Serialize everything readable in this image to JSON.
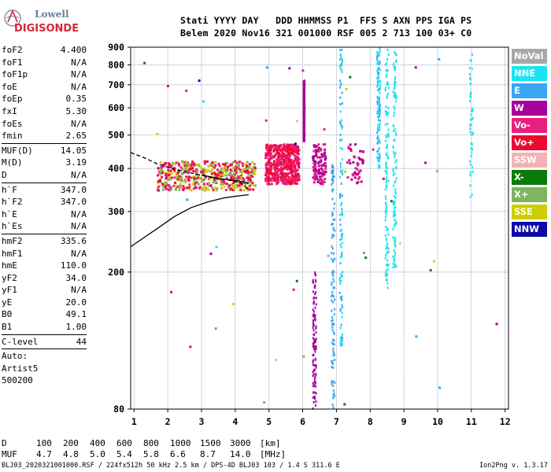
{
  "logo": {
    "top": "Lowell",
    "bottom": "DIGISONDE"
  },
  "header": {
    "line1": "Stati YYYY DAY   DDD HHMMSS P1  FFS S AXN PPS IGA PS",
    "line2": "Belem 2020 Nov16 321 001000 RSF 005 2 713 100 03+ C0"
  },
  "params": [
    {
      "name": "foF2",
      "value": "4.400"
    },
    {
      "name": "foF1",
      "value": "N/A"
    },
    {
      "name": "foF1p",
      "value": "N/A"
    },
    {
      "name": "foE",
      "value": "N/A"
    },
    {
      "name": "foEp",
      "value": "0.35"
    },
    {
      "name": "fxI",
      "value": "5.30"
    },
    {
      "name": "foEs",
      "value": "N/A"
    },
    {
      "name": "fmin",
      "value": "2.65"
    },
    {
      "sep": true
    },
    {
      "name": "MUF(D)",
      "value": "14.05"
    },
    {
      "name": "M(D)",
      "value": "3.19"
    },
    {
      "name": "D",
      "value": "N/A"
    },
    {
      "sep": true
    },
    {
      "name": "h`F",
      "value": "347.0"
    },
    {
      "name": "h`F2",
      "value": "347.0"
    },
    {
      "name": "h`E",
      "value": "N/A"
    },
    {
      "name": "h`Es",
      "value": "N/A"
    },
    {
      "sep": true
    },
    {
      "name": "hmF2",
      "value": "335.6"
    },
    {
      "name": "hmF1",
      "value": "N/A"
    },
    {
      "name": "hmE",
      "value": "110.0"
    },
    {
      "name": "yF2",
      "value": "34.0"
    },
    {
      "name": "yF1",
      "value": "N/A"
    },
    {
      "name": "yE",
      "value": "20.0"
    },
    {
      "name": "B0",
      "value": "49.1"
    },
    {
      "name": "B1",
      "value": "1.00"
    },
    {
      "sep": true
    },
    {
      "name": "C-level",
      "value": "44"
    },
    {
      "sep": true
    },
    {
      "name": "Auto:",
      "value": ""
    },
    {
      "name": "Artist5",
      "value": ""
    },
    {
      "name": "500200",
      "value": ""
    }
  ],
  "legend": [
    {
      "label": "NoVal",
      "color": "#a8a8a8"
    },
    {
      "label": "NNE",
      "color": "#1ae4f2"
    },
    {
      "label": "E",
      "color": "#3aa6f4"
    },
    {
      "label": "W",
      "color": "#a8009c"
    },
    {
      "label": "Vo-",
      "color": "#ea1e7e"
    },
    {
      "label": "Vo+",
      "color": "#ee0a2e"
    },
    {
      "label": "SSW",
      "color": "#f4b2b2"
    },
    {
      "label": "X-",
      "color": "#0a7a0a"
    },
    {
      "label": "X+",
      "color": "#80b45e"
    },
    {
      "label": "SSE",
      "color": "#cece08"
    },
    {
      "label": "NNW",
      "color": "#0a0aa6"
    }
  ],
  "muf_table": {
    "d_label": "D",
    "muf_label": "MUF",
    "distances": [
      "100",
      "200",
      "400",
      "600",
      "800",
      "1000",
      "1500",
      "3000"
    ],
    "distance_unit": "[km]",
    "mufs": [
      "4.7",
      "4.8",
      "5.0",
      "5.4",
      "5.8",
      "6.6",
      "8.7",
      "14.0"
    ],
    "muf_unit": "[MHz]"
  },
  "footer": {
    "left": "BLJ03_2020321001000.RSF / 224fx512h 50 kHz 2.5 km / DPS-4D BLJ03 103 / 1.4 S 311.6 E",
    "right": "Ion2Png v. 1.3.17"
  },
  "chart_data": {
    "type": "scatter",
    "title": "",
    "xlabel": "",
    "ylabel": "",
    "xlim": [
      0.9,
      12.1
    ],
    "ylim": [
      80,
      900
    ],
    "xticks": [
      1,
      2,
      3,
      4,
      5,
      6,
      7,
      8,
      9,
      10,
      11,
      12
    ],
    "yticks": [
      80,
      200,
      300,
      400,
      500,
      600,
      700,
      800,
      900
    ],
    "y_scale": "log",
    "grid": true,
    "echo_clusters": [
      {
        "name": "F-layer trace",
        "x_range": [
          1.7,
          4.6
        ],
        "y_range": [
          345,
          420
        ],
        "dominant": [
          "Vo-",
          "Vo+",
          "SSE",
          "X+"
        ],
        "density": "high"
      },
      {
        "name": "spread-F 5 MHz",
        "x_range": [
          4.9,
          5.9
        ],
        "y_range": [
          360,
          470
        ],
        "dominant": [
          "Vo-",
          "Vo+"
        ],
        "density": "high"
      },
      {
        "name": "spread-F 6.4 MHz",
        "x_range": [
          6.3,
          6.7
        ],
        "y_range": [
          360,
          470
        ],
        "dominant": [
          "Vo-",
          "W"
        ],
        "density": "medium"
      },
      {
        "name": "spread-F 7.5 MHz",
        "x_range": [
          7.3,
          7.8
        ],
        "y_range": [
          360,
          470
        ],
        "dominant": [
          "Vo-",
          "W"
        ],
        "density": "low"
      },
      {
        "name": "vertical stripe",
        "x_range": [
          6.02,
          6.06
        ],
        "y_range": [
          480,
          720
        ],
        "dominant": [
          "W"
        ],
        "density": "high"
      },
      {
        "name": "vertical stripe 6.3",
        "x_range": [
          6.3,
          6.4
        ],
        "y_range": [
          80,
          200
        ],
        "dominant": [
          "W"
        ],
        "density": "medium"
      },
      {
        "name": "vertical stripe 6.9",
        "x_range": [
          6.85,
          6.95
        ],
        "y_range": [
          80,
          420
        ],
        "dominant": [
          "E"
        ],
        "density": "medium"
      },
      {
        "name": "vertical stripe 7.1",
        "x_range": [
          7.1,
          7.18
        ],
        "y_range": [
          120,
          900
        ],
        "dominant": [
          "NNE",
          "E"
        ],
        "density": "medium"
      },
      {
        "name": "vertical stripe 8.2",
        "x_range": [
          8.2,
          8.3
        ],
        "y_range": [
          400,
          900
        ],
        "dominant": [
          "E",
          "NNE"
        ],
        "density": "medium"
      },
      {
        "name": "vertical stripe 8.5",
        "x_range": [
          8.45,
          8.55
        ],
        "y_range": [
          180,
          900
        ],
        "dominant": [
          "NNE"
        ],
        "density": "medium"
      },
      {
        "name": "vertical stripe 8.7",
        "x_range": [
          8.68,
          8.78
        ],
        "y_range": [
          200,
          900
        ],
        "dominant": [
          "NNE"
        ],
        "density": "medium"
      },
      {
        "name": "vertical stripe 11.0",
        "x_range": [
          10.95,
          11.05
        ],
        "y_range": [
          330,
          900
        ],
        "dominant": [
          "NNE"
        ],
        "density": "low"
      },
      {
        "name": "background noise",
        "x_range": [
          1,
          12
        ],
        "y_range": [
          80,
          900
        ],
        "dominant": [
          "all"
        ],
        "density": "low"
      }
    ],
    "profile_solid": [
      {
        "x": 0.9,
        "y": 237
      },
      {
        "x": 1.3,
        "y": 252
      },
      {
        "x": 1.7,
        "y": 268
      },
      {
        "x": 2.2,
        "y": 290
      },
      {
        "x": 2.7,
        "y": 308
      },
      {
        "x": 3.2,
        "y": 320
      },
      {
        "x": 3.7,
        "y": 329
      },
      {
        "x": 4.1,
        "y": 333
      },
      {
        "x": 4.4,
        "y": 335.6
      }
    ],
    "trace_dashed": [
      {
        "x": 0.9,
        "y": 445
      },
      {
        "x": 1.3,
        "y": 430
      },
      {
        "x": 1.7,
        "y": 412
      },
      {
        "x": 2.2,
        "y": 398
      },
      {
        "x": 2.8,
        "y": 386
      },
      {
        "x": 3.3,
        "y": 376
      },
      {
        "x": 3.8,
        "y": 370
      },
      {
        "x": 4.2,
        "y": 362
      },
      {
        "x": 4.4,
        "y": 347
      }
    ],
    "trace_solid_short": [
      {
        "x": 3.0,
        "y": 383
      },
      {
        "x": 3.5,
        "y": 374
      },
      {
        "x": 4.1,
        "y": 368
      },
      {
        "x": 4.4,
        "y": 362
      }
    ]
  }
}
